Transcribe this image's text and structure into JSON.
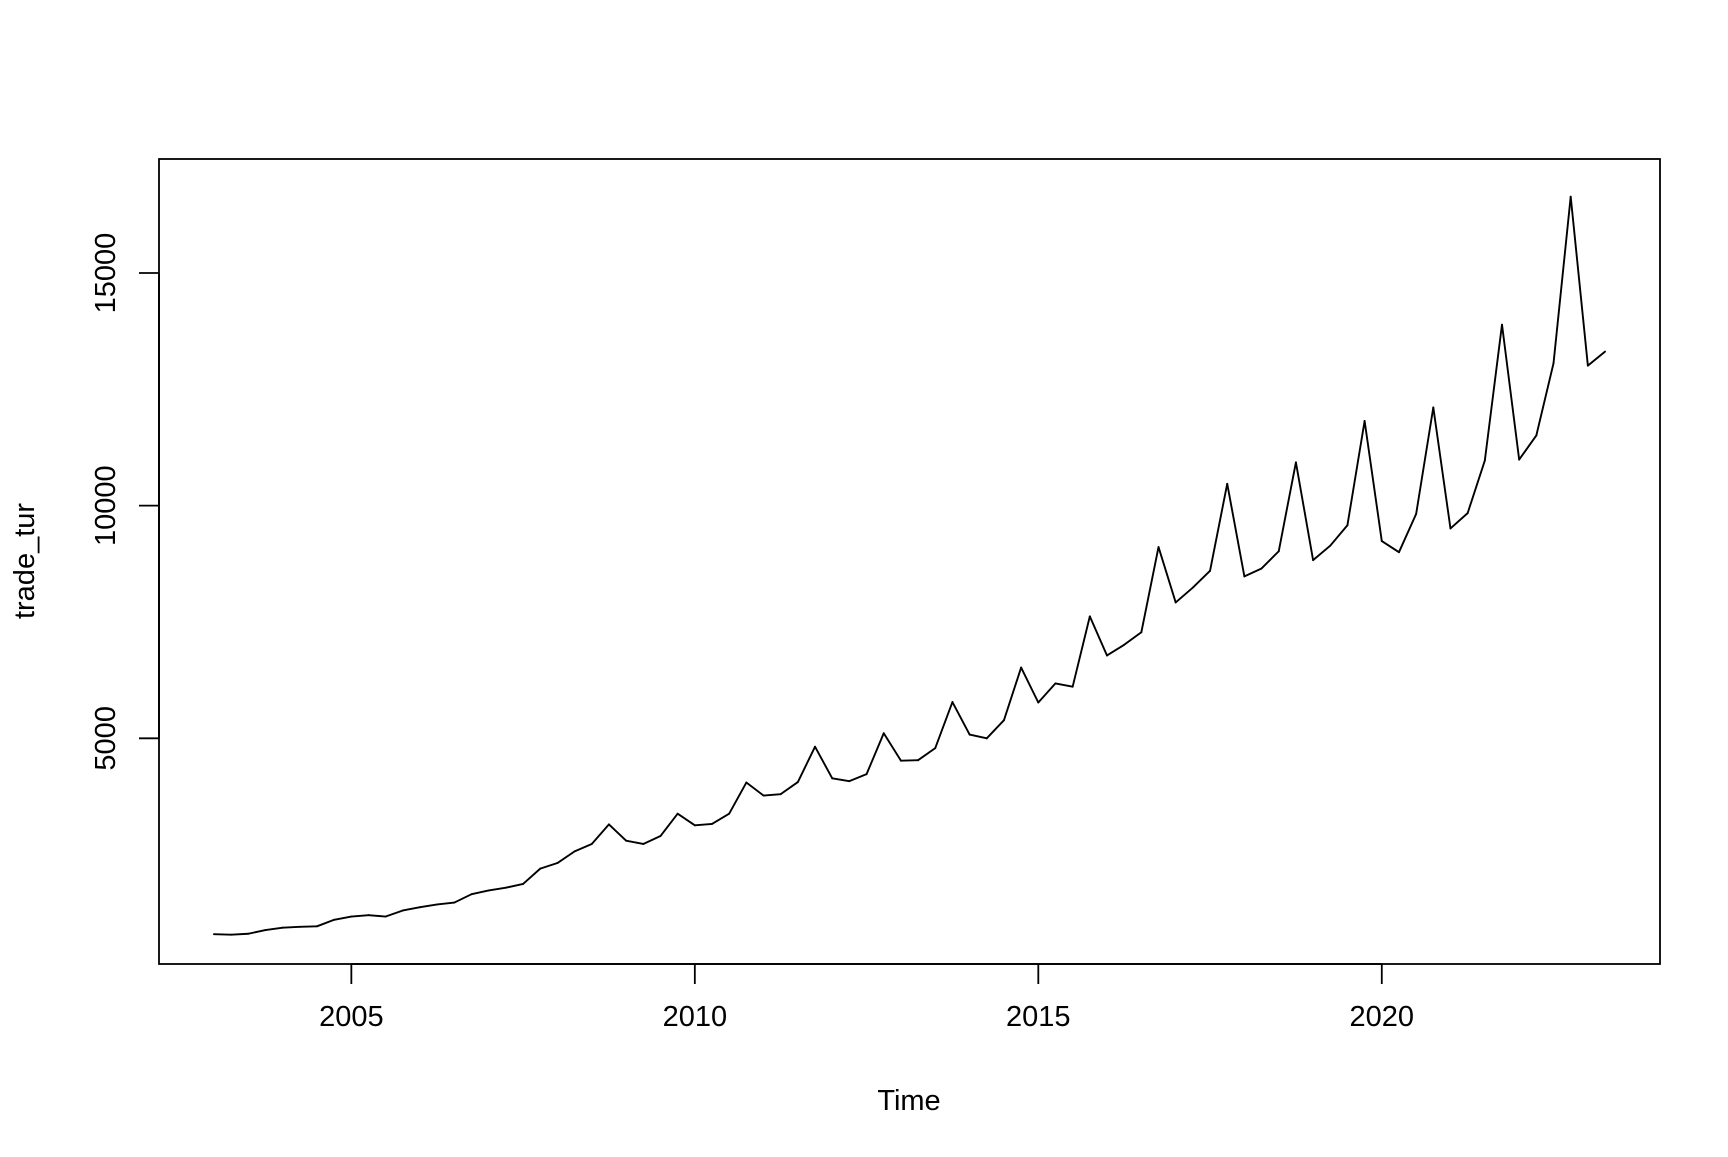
{
  "chart_data": {
    "type": "line",
    "title": "",
    "xlabel": "Time",
    "ylabel": "trade_tur",
    "xlim": [
      2002.2,
      2024.05
    ],
    "ylim": [
      150,
      17450
    ],
    "x_ticks": [
      2005,
      2010,
      2015,
      2020
    ],
    "x_tick_labels": [
      "2005",
      "2010",
      "2015",
      "2020"
    ],
    "y_ticks": [
      5000,
      10000,
      15000
    ],
    "y_tick_labels": [
      "5000",
      "10000",
      "15000"
    ],
    "grid": false,
    "legend": "none",
    "line_color": "#000000",
    "series": [
      {
        "x": [
          2003,
          2003.25,
          2003.5,
          2003.75,
          2004,
          2004.25,
          2004.5,
          2004.75,
          2005,
          2005.25,
          2005.5,
          2005.75,
          2006,
          2006.25,
          2006.5,
          2006.75,
          2007,
          2007.25,
          2007.5,
          2007.75,
          2008,
          2008.25,
          2008.5,
          2008.75,
          2009,
          2009.25,
          2009.5,
          2009.75,
          2010,
          2010.25,
          2010.5,
          2010.75,
          2011,
          2011.25,
          2011.5,
          2011.75,
          2012,
          2012.25,
          2012.5,
          2012.75,
          2013,
          2013.25,
          2013.5,
          2013.75,
          2014,
          2014.25,
          2014.5,
          2014.75,
          2015,
          2015.25,
          2015.5,
          2015.75,
          2016,
          2016.25,
          2016.5,
          2016.75,
          2017,
          2017.25,
          2017.5,
          2017.75,
          2018,
          2018.25,
          2018.5,
          2018.75,
          2019,
          2019.25,
          2019.5,
          2019.75,
          2020,
          2020.25,
          2020.5,
          2020.75,
          2021,
          2021.25,
          2021.5,
          2021.75,
          2022,
          2022.25,
          2022.5,
          2022.75,
          2023,
          2023.25
        ],
        "values": [
          790,
          780,
          800,
          880,
          930,
          950,
          960,
          1100,
          1170,
          1200,
          1170,
          1300,
          1370,
          1430,
          1470,
          1650,
          1730,
          1790,
          1870,
          2200,
          2320,
          2570,
          2730,
          3150,
          2800,
          2730,
          2900,
          3380,
          3130,
          3160,
          3380,
          4050,
          3770,
          3800,
          4060,
          4820,
          4140,
          4080,
          4230,
          5110,
          4520,
          4530,
          4790,
          5780,
          5080,
          5000,
          5390,
          6520,
          5770,
          6180,
          6110,
          7620,
          6780,
          7010,
          7280,
          9110,
          7920,
          8240,
          8600,
          10470,
          8480,
          8650,
          9020,
          10930,
          8830,
          9140,
          9580,
          11820,
          9240,
          9000,
          9820,
          12110,
          9510,
          9840,
          10970,
          13890,
          10990,
          11510,
          13060,
          16640,
          13010,
          13310
        ]
      }
    ]
  }
}
